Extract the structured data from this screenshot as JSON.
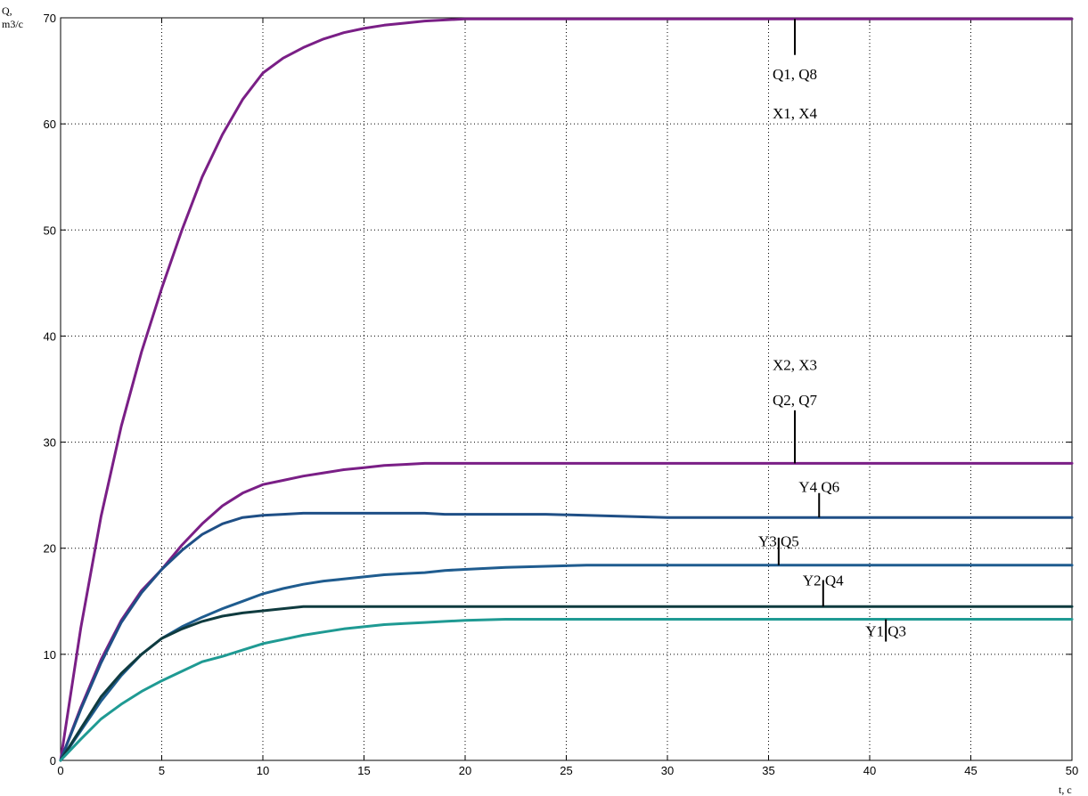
{
  "chart_data": {
    "type": "line",
    "ylabel_lines": [
      "Q,",
      "m3/c"
    ],
    "xlabel": "t, c",
    "xlim": [
      0,
      50
    ],
    "ylim": [
      0,
      70
    ],
    "xticks": [
      0,
      5,
      10,
      15,
      20,
      25,
      30,
      35,
      40,
      45,
      50
    ],
    "yticks": [
      0,
      10,
      20,
      30,
      40,
      50,
      60,
      70
    ],
    "grid": true,
    "x": [
      0,
      1,
      2,
      3,
      4,
      5,
      6,
      7,
      8,
      9,
      10,
      11,
      12,
      13,
      14,
      15,
      16,
      17,
      18,
      19,
      20,
      22,
      24,
      26,
      28,
      30,
      33,
      36,
      40,
      45,
      50
    ],
    "series": [
      {
        "color": "#7a1f86",
        "values": [
          0,
          12.5,
          23,
          31.5,
          38.5,
          44.5,
          50,
          55,
          59,
          62.3,
          64.8,
          66.2,
          67.2,
          68,
          68.6,
          69,
          69.3,
          69.5,
          69.7,
          69.8,
          69.9,
          69.9,
          69.9,
          69.9,
          69.9,
          69.9,
          69.9,
          69.9,
          69.9,
          69.9,
          69.9
        ]
      },
      {
        "color": "#7a1f86",
        "values": [
          0,
          5,
          9.5,
          13.2,
          16,
          18,
          20.3,
          22.3,
          24,
          25.2,
          26,
          26.4,
          26.8,
          27.1,
          27.4,
          27.6,
          27.8,
          27.9,
          28,
          28,
          28,
          28,
          28,
          28,
          28,
          28,
          28,
          28,
          28,
          28,
          28
        ]
      },
      {
        "color": "#1f4f86",
        "values": [
          0,
          4.8,
          9.2,
          13,
          15.8,
          18,
          19.8,
          21.3,
          22.3,
          22.9,
          23.1,
          23.2,
          23.3,
          23.3,
          23.3,
          23.3,
          23.3,
          23.3,
          23.3,
          23.2,
          23.2,
          23.2,
          23.2,
          23.1,
          23,
          22.9,
          22.9,
          22.9,
          22.9,
          22.9,
          22.9
        ]
      },
      {
        "color": "#1f5c8f",
        "values": [
          0,
          2.8,
          5.6,
          8,
          10,
          11.5,
          12.6,
          13.5,
          14.3,
          15,
          15.7,
          16.2,
          16.6,
          16.9,
          17.1,
          17.3,
          17.5,
          17.6,
          17.7,
          17.9,
          18,
          18.2,
          18.3,
          18.4,
          18.4,
          18.4,
          18.4,
          18.4,
          18.4,
          18.4,
          18.4
        ]
      },
      {
        "color": "#0f3b3f",
        "values": [
          0,
          3,
          6,
          8.2,
          10,
          11.5,
          12.4,
          13.1,
          13.6,
          13.9,
          14.1,
          14.3,
          14.5,
          14.5,
          14.5,
          14.5,
          14.5,
          14.5,
          14.5,
          14.5,
          14.5,
          14.5,
          14.5,
          14.5,
          14.5,
          14.5,
          14.5,
          14.5,
          14.5,
          14.5,
          14.5
        ]
      },
      {
        "color": "#1f9a93",
        "values": [
          0,
          2,
          3.9,
          5.3,
          6.5,
          7.5,
          8.4,
          9.3,
          9.8,
          10.4,
          11,
          11.4,
          11.8,
          12.1,
          12.4,
          12.6,
          12.8,
          12.9,
          13,
          13.1,
          13.2,
          13.3,
          13.3,
          13.3,
          13.3,
          13.3,
          13.3,
          13.3,
          13.3,
          13.3,
          13.3
        ]
      }
    ],
    "annotations": [
      {
        "lines": [
          "Q1, Q8",
          "X1, X4"
        ],
        "x": 36.3,
        "y": 69.9,
        "pointer": [
          66.5,
          69.9
        ],
        "text_y": [
          64.2,
          60.5
        ]
      },
      {
        "lines": [
          "X2, X3",
          "Q2, Q7"
        ],
        "x": 36.3,
        "y": 28,
        "pointer": [
          28,
          33
        ],
        "text_y": [
          36.8,
          33.5
        ]
      },
      {
        "lines": [
          "Y4  Q6"
        ],
        "x": 37.5,
        "y": 22.9,
        "pointer": [
          22.9,
          25.2
        ],
        "text_y": [
          25.3
        ]
      },
      {
        "lines": [
          "Y3  Q5"
        ],
        "x": 35.5,
        "y": 18.4,
        "pointer": [
          18.4,
          21
        ],
        "text_y": [
          20.2
        ]
      },
      {
        "lines": [
          "Y2  Q4"
        ],
        "x": 37.7,
        "y": 14.5,
        "pointer": [
          14.5,
          17
        ],
        "text_y": [
          16.5
        ]
      },
      {
        "lines": [
          "Y1  Q3"
        ],
        "x": 40.8,
        "y": 13.3,
        "pointer": [
          11.2,
          13.3
        ],
        "text_y": [
          11.7
        ]
      }
    ]
  }
}
